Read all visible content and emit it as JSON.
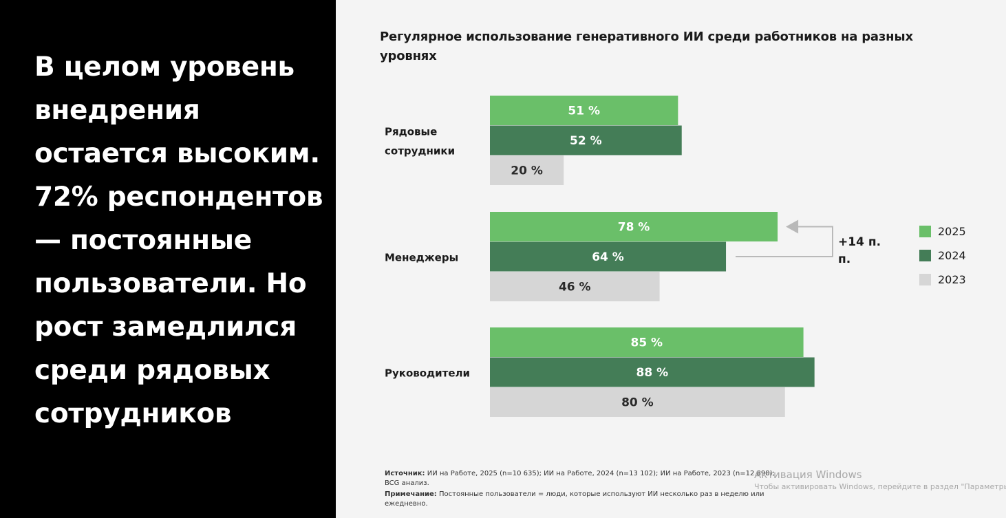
{
  "left": {
    "headline": "В целом уровень внедрения остается высоким. 72% респондентов — постоянные пользователи. Но рост замедлился среди рядовых сотрудников"
  },
  "chart_data": {
    "type": "bar",
    "orientation": "horizontal",
    "title": "Регулярное использование генеративного ИИ среди работников на разных уровнях",
    "categories": [
      "Рядовые сотрудники",
      "Менеджеры",
      "Руководители"
    ],
    "series": [
      {
        "name": "2025",
        "values": [
          51,
          78,
          85
        ],
        "color": "#6abf69",
        "label_color": "#ffffff"
      },
      {
        "name": "2024",
        "values": [
          52,
          64,
          88
        ],
        "color": "#447d57",
        "label_color": "#ffffff"
      },
      {
        "name": "2023",
        "values": [
          20,
          46,
          80
        ],
        "color": "#d6d6d6",
        "label_color": "#2a2a2a"
      }
    ],
    "value_suffix": " %",
    "legend_position": "right",
    "grid": false,
    "annotation": {
      "category": "Менеджеры",
      "text": "+14 п. п.",
      "from_series": "2024",
      "to_series": "2025"
    }
  },
  "footnote": {
    "source_label": "Источник:",
    "source_text": " ИИ на Работе, 2025 (n=10 635);  ИИ на Работе, 2024 (n=13 102); ИИ на Работе, 2023 (n=12 898); BCG анализ.",
    "note_label": "Примечание:",
    "note_text": " Постоянные пользователи = люди, которые используют ИИ несколько раз в неделю или ежедневно."
  },
  "watermark": {
    "title": "Активация Windows",
    "subtitle": "Чтобы активировать Windows, перейдите в раздел \"Параметры\"."
  }
}
